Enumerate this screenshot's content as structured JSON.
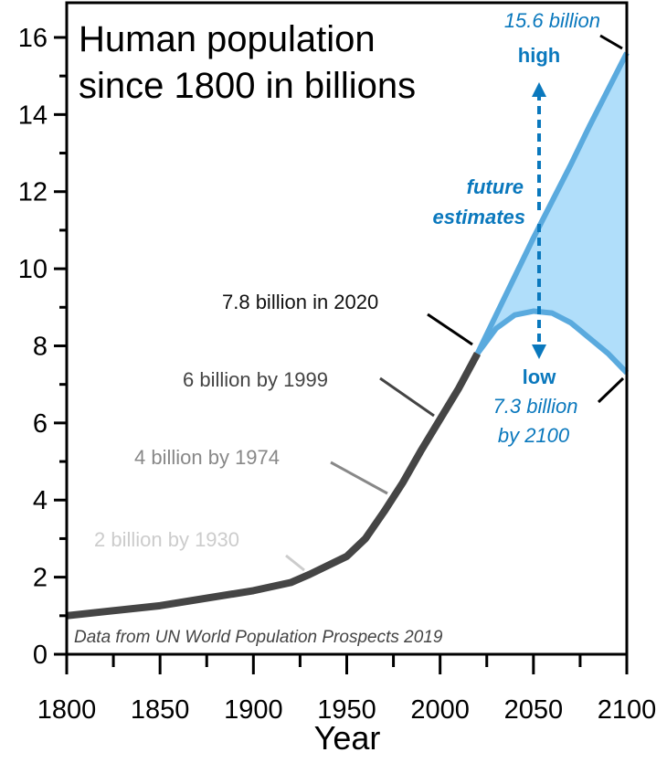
{
  "chart_data": {
    "type": "line",
    "title": "Human population since 1800 in billions",
    "title_lines": [
      "Human population",
      "since 1800 in billions"
    ],
    "xlabel": "Year",
    "ylabel": "",
    "xlim": [
      1800,
      2100
    ],
    "ylim": [
      0,
      16.9
    ],
    "x_ticks": [
      "1800",
      "1850",
      "1900",
      "1950",
      "2000",
      "2050",
      "2100"
    ],
    "y_ticks": [
      "0",
      "2",
      "4",
      "6",
      "8",
      "10",
      "12",
      "14",
      "16"
    ],
    "grid": false,
    "source_note": "Data from UN World Population Prospects 2019",
    "colors": {
      "history": "#454545",
      "projection_line": "#5aaade",
      "projection_fill": "#b0defa",
      "annotation_blue": "#0a78bd"
    },
    "series": [
      {
        "key": "history",
        "x": [
          1800,
          1850,
          1900,
          1920,
          1930,
          1950,
          1960,
          1970,
          1980,
          1990,
          2000,
          2010,
          2020
        ],
        "y": [
          1.0,
          1.26,
          1.65,
          1.86,
          2.07,
          2.54,
          3.0,
          3.7,
          4.45,
          5.3,
          6.1,
          6.9,
          7.8
        ]
      },
      {
        "key": "high",
        "x": [
          2020,
          2030,
          2040,
          2050,
          2060,
          2070,
          2080,
          2090,
          2100
        ],
        "y": [
          7.8,
          8.8,
          9.8,
          10.8,
          11.75,
          12.7,
          13.7,
          14.65,
          15.6
        ]
      },
      {
        "key": "low",
        "x": [
          2020,
          2030,
          2040,
          2050,
          2060,
          2070,
          2080,
          2090,
          2100
        ],
        "y": [
          7.8,
          8.45,
          8.8,
          8.9,
          8.85,
          8.6,
          8.2,
          7.8,
          7.3
        ]
      }
    ],
    "annotations": {
      "a2020": "7.8 billion in 2020",
      "a1999": "6 billion by 1999",
      "a1974": "4 billion by 1974",
      "a1930": "2 billion by 1930",
      "high_value": "15.6 billion",
      "high_label": "high",
      "future_1": "future",
      "future_2": "estimates",
      "low_label": "low",
      "low_value": "7.3 billion",
      "low_year": "by 2100"
    }
  }
}
